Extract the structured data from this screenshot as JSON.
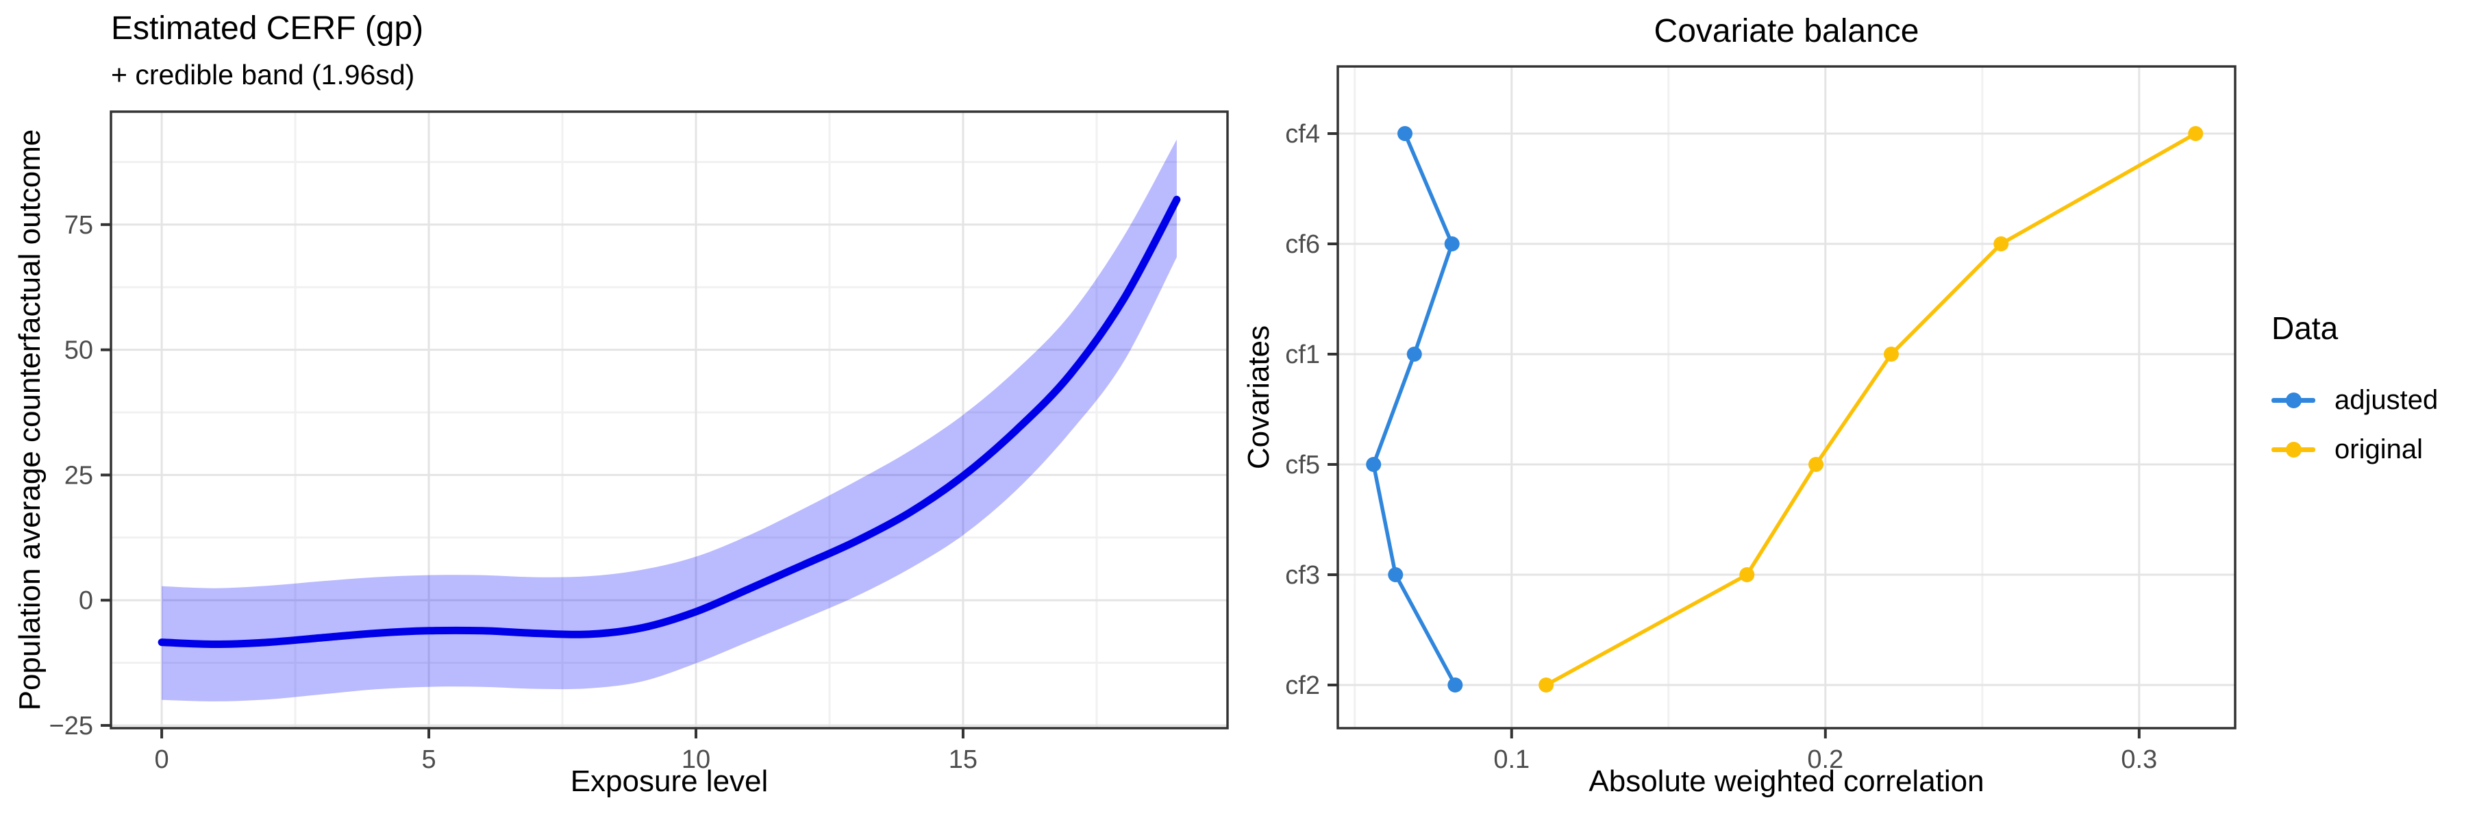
{
  "left_plot": {
    "title": "Estimated CERF (gp)",
    "subtitle": "+ credible band (1.96sd)",
    "x_label": "Exposure level",
    "y_label": "Population average counterfactual outcome"
  },
  "right_plot": {
    "title": "Covariate balance",
    "x_label": "Absolute weighted correlation",
    "y_label": "Covariates"
  },
  "legend": {
    "title": "Data",
    "items": [
      {
        "label": "adjusted",
        "color": "#2F86DC"
      },
      {
        "label": "original",
        "color": "#FCC107"
      }
    ]
  },
  "colors": {
    "cerf_line": "#0000E8",
    "cerf_band": "#0000FF",
    "cerf_band_opacity": "0.27",
    "adjusted": "#2F86DC",
    "original": "#FCC107",
    "panel_border": "#333333",
    "tick_mark": "#333333",
    "tick_label": "#4D4D4D",
    "grid_major": "#E4E4E4",
    "grid_minor": "#F1F1F1"
  },
  "chart_data": [
    {
      "type": "line",
      "name": "estimated-cerf",
      "title": "Estimated CERF (gp)",
      "subtitle": "+ credible band (1.96sd)",
      "xlabel": "Exposure level",
      "ylabel": "Population average counterfactual outcome",
      "grid": "on",
      "legend_position": "none",
      "xlim": [
        -0.95,
        19.95
      ],
      "ylim": [
        -25.55,
        97.55
      ],
      "x_ticks": [
        {
          "v": 0,
          "label": "0"
        },
        {
          "v": 5,
          "label": "5"
        },
        {
          "v": 10,
          "label": "10"
        },
        {
          "v": 15,
          "label": "15"
        }
      ],
      "x_minor": [
        2.5,
        7.5,
        12.5,
        17.5
      ],
      "y_ticks": [
        {
          "v": -25,
          "label": "−25"
        },
        {
          "v": 0,
          "label": "0"
        },
        {
          "v": 25,
          "label": "25"
        },
        {
          "v": 50,
          "label": "50"
        },
        {
          "v": 75,
          "label": "75"
        }
      ],
      "y_minor": [
        -12.5,
        12.5,
        37.5,
        62.5,
        87.5
      ],
      "x": [
        0,
        1,
        2,
        3,
        4,
        5,
        6,
        7,
        8,
        9,
        10,
        11,
        12,
        13,
        14,
        15,
        16,
        17,
        18,
        19
      ],
      "mean": [
        -8.4,
        -8.8,
        -8.4,
        -7.5,
        -6.6,
        -6.1,
        -6.1,
        -6.6,
        -6.8,
        -5.5,
        -2.3,
        2.3,
        7.0,
        11.8,
        17.5,
        24.8,
        34.0,
        45.0,
        60.0,
        80.0
      ],
      "upper": [
        2.8,
        2.4,
        2.9,
        3.8,
        4.6,
        5.0,
        5.0,
        4.6,
        4.8,
        6.1,
        8.7,
        13.0,
        18.2,
        23.8,
        29.8,
        37.0,
        46.0,
        57.0,
        72.5,
        92.0
      ],
      "lower": [
        -19.9,
        -20.2,
        -19.8,
        -18.8,
        -17.8,
        -17.3,
        -17.3,
        -17.7,
        -17.6,
        -16.2,
        -12.6,
        -8.2,
        -3.8,
        0.8,
        6.3,
        13.0,
        22.0,
        33.5,
        47.5,
        68.5
      ]
    },
    {
      "type": "scatter",
      "name": "covariate-balance",
      "title": "Covariate balance",
      "xlabel": "Absolute weighted correlation",
      "ylabel": "Covariates",
      "grid": "on",
      "legend_title": "Data",
      "legend_position": "right",
      "xlim": [
        0.0446,
        0.3306
      ],
      "x_ticks": [
        {
          "v": 0.1,
          "label": "0.1"
        },
        {
          "v": 0.2,
          "label": "0.2"
        },
        {
          "v": 0.3,
          "label": "0.3"
        }
      ],
      "x_minor": [
        0.05,
        0.15,
        0.25
      ],
      "categories": [
        "cf4",
        "cf6",
        "cf1",
        "cf5",
        "cf3",
        "cf2"
      ],
      "series": [
        {
          "name": "adjusted",
          "color": "#2F86DC",
          "values": [
            0.066,
            0.081,
            0.069,
            0.056,
            0.063,
            0.082
          ]
        },
        {
          "name": "original",
          "color": "#FCC107",
          "values": [
            0.318,
            0.256,
            0.221,
            0.197,
            0.175,
            0.111
          ]
        }
      ]
    }
  ]
}
